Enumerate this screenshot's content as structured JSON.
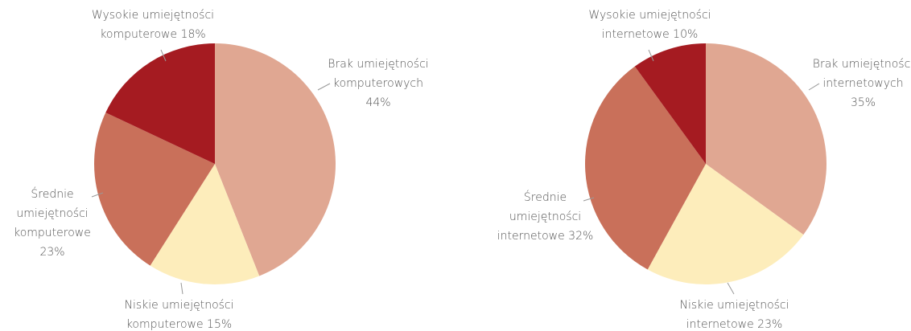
{
  "chart_data": [
    {
      "type": "pie",
      "categories": [
        "Brak umiejętności komputerowych",
        "Niskie umiejętności komputerowe",
        "Średnie umiejętności komputerowe",
        "Wysokie umiejętności komputerowe"
      ],
      "values": [
        44,
        15,
        23,
        18
      ],
      "value_labels": [
        "44%",
        "15%",
        "23%",
        "18%"
      ],
      "colors": [
        "#e0a792",
        "#fdedbb",
        "#c9705a",
        "#a51b21"
      ]
    },
    {
      "type": "pie",
      "categories": [
        "Brak umiejętności internetowych",
        "Niskie umiejętności internetowe",
        "Średnie umiejętności internetowe",
        "Wysokie umiejętności internetowe"
      ],
      "values": [
        35,
        23,
        32,
        10
      ],
      "value_labels": [
        "35%",
        "23%",
        "32%",
        "10%"
      ],
      "colors": [
        "#e0a792",
        "#fdedbb",
        "#c9705a",
        "#a51b21"
      ]
    }
  ]
}
